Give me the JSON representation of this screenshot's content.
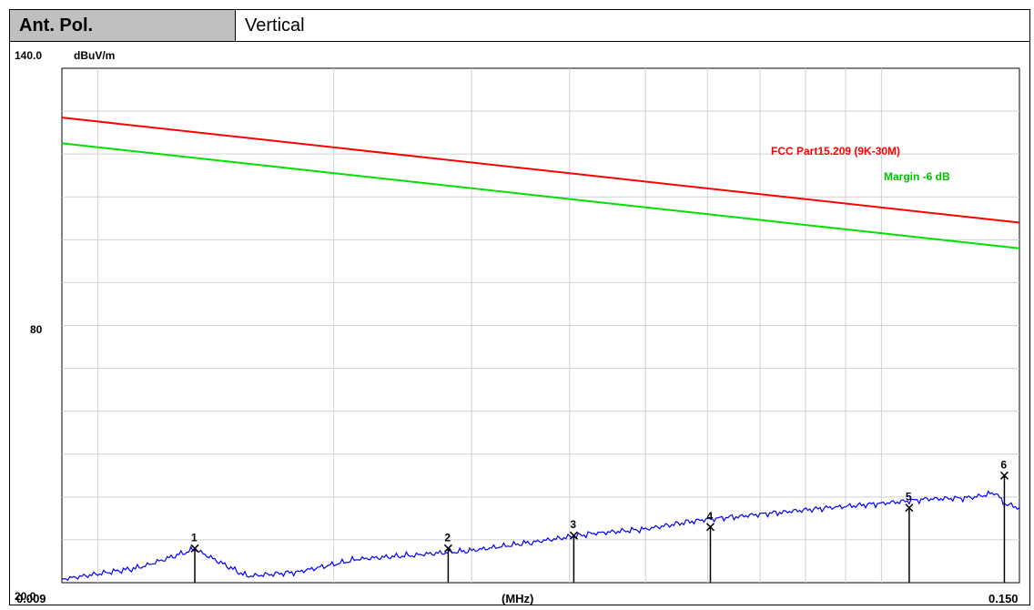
{
  "header": {
    "label": "Ant. Pol.",
    "value": "Vertical"
  },
  "chart_data": {
    "type": "line",
    "title": "",
    "xlabel": "(MHz)",
    "ylabel": "dBuV/m",
    "x_log_scale": true,
    "xlim": [
      0.009,
      0.15
    ],
    "ylim": [
      20.0,
      140.0
    ],
    "x_tick_labels": [
      "0.009",
      "0.150"
    ],
    "y_tick_labels": [
      "140.0",
      "80",
      "20.0"
    ],
    "grid": true,
    "series": [
      {
        "name": "FCC Part15.209 (9K-30M)",
        "color": "#ff0000",
        "x": [
          0.009,
          0.15
        ],
        "y": [
          128.5,
          104.0
        ]
      },
      {
        "name": "Margin -6 dB",
        "color": "#00e000",
        "x": [
          0.009,
          0.15
        ],
        "y": [
          122.5,
          98.0
        ]
      },
      {
        "name": "",
        "color": "#0000ff",
        "role": "measured-spectrum",
        "x": [
          0.009,
          0.0113,
          0.0133,
          0.0155,
          0.018,
          0.0215,
          0.0255,
          0.03,
          0.036,
          0.043,
          0.05,
          0.058,
          0.066,
          0.075,
          0.086,
          0.1,
          0.115,
          0.13,
          0.14,
          0.143,
          0.15
        ],
        "y": [
          20.8,
          23.5,
          27.8,
          21.5,
          22.5,
          25.5,
          26.5,
          27.5,
          29.5,
          31.5,
          32.5,
          34.5,
          35.5,
          36.5,
          37.5,
          38.5,
          39.5,
          39.8,
          41.0,
          38.5,
          37.5
        ]
      }
    ],
    "markers": [
      {
        "label": "1",
        "x": 0.0133,
        "y": 28.0
      },
      {
        "label": "2",
        "x": 0.028,
        "y": 28.0
      },
      {
        "label": "3",
        "x": 0.0405,
        "y": 31.0
      },
      {
        "label": "4",
        "x": 0.0605,
        "y": 33.0
      },
      {
        "label": "5",
        "x": 0.1085,
        "y": 37.5
      },
      {
        "label": "6",
        "x": 0.1435,
        "y": 45.0
      }
    ]
  }
}
